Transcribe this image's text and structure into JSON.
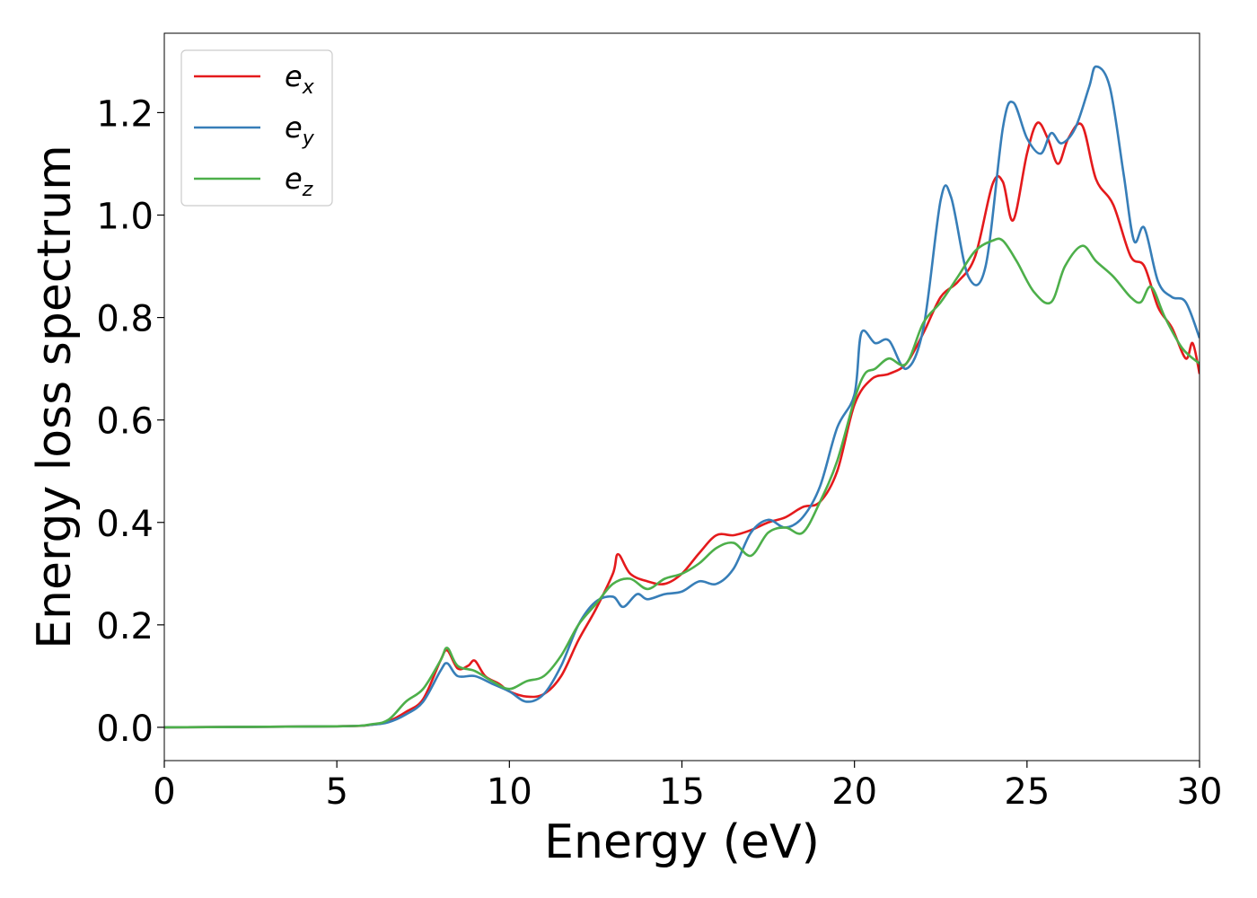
{
  "chart_data": {
    "type": "line",
    "xlabel": "Energy (eV)",
    "ylabel": "Energy loss spectrum",
    "xlim": [
      0,
      30
    ],
    "ylim": [
      -0.065,
      1.355
    ],
    "xticks": [
      0,
      5,
      10,
      15,
      20,
      25,
      30
    ],
    "xtick_labels": [
      "0",
      "5",
      "10",
      "15",
      "20",
      "25",
      "30"
    ],
    "yticks": [
      0.0,
      0.2,
      0.4,
      0.6,
      0.8,
      1.0,
      1.2
    ],
    "ytick_labels": [
      "0.0",
      "0.2",
      "0.4",
      "0.6",
      "0.8",
      "1.0",
      "1.2"
    ],
    "grid": false,
    "legend_position": "top-left",
    "series": [
      {
        "name": "e_x",
        "legend_base": "e",
        "legend_sub": "x",
        "color": "#e41a1c",
        "points": [
          [
            0,
            0.0
          ],
          [
            5,
            0.002
          ],
          [
            6,
            0.005
          ],
          [
            6.5,
            0.012
          ],
          [
            7,
            0.03
          ],
          [
            7.5,
            0.055
          ],
          [
            8,
            0.13
          ],
          [
            8.2,
            0.15
          ],
          [
            8.5,
            0.115
          ],
          [
            8.8,
            0.12
          ],
          [
            9.0,
            0.13
          ],
          [
            9.3,
            0.1
          ],
          [
            9.7,
            0.085
          ],
          [
            10,
            0.07
          ],
          [
            10.5,
            0.06
          ],
          [
            11,
            0.065
          ],
          [
            11.5,
            0.1
          ],
          [
            12,
            0.17
          ],
          [
            12.5,
            0.23
          ],
          [
            13.0,
            0.3
          ],
          [
            13.15,
            0.338
          ],
          [
            13.5,
            0.3
          ],
          [
            14,
            0.285
          ],
          [
            14.5,
            0.28
          ],
          [
            15,
            0.3
          ],
          [
            15.5,
            0.34
          ],
          [
            16,
            0.375
          ],
          [
            16.5,
            0.375
          ],
          [
            17,
            0.385
          ],
          [
            17.5,
            0.4
          ],
          [
            18,
            0.41
          ],
          [
            18.5,
            0.43
          ],
          [
            19,
            0.44
          ],
          [
            19.5,
            0.5
          ],
          [
            20,
            0.63
          ],
          [
            20.5,
            0.68
          ],
          [
            21,
            0.69
          ],
          [
            21.5,
            0.71
          ],
          [
            22,
            0.77
          ],
          [
            22.5,
            0.84
          ],
          [
            23,
            0.87
          ],
          [
            23.5,
            0.92
          ],
          [
            24,
            1.06
          ],
          [
            24.3,
            1.065
          ],
          [
            24.6,
            0.99
          ],
          [
            25,
            1.12
          ],
          [
            25.3,
            1.18
          ],
          [
            25.6,
            1.15
          ],
          [
            25.9,
            1.1
          ],
          [
            26.2,
            1.15
          ],
          [
            26.6,
            1.175
          ],
          [
            27,
            1.07
          ],
          [
            27.5,
            1.02
          ],
          [
            28,
            0.92
          ],
          [
            28.4,
            0.9
          ],
          [
            28.8,
            0.82
          ],
          [
            29.2,
            0.78
          ],
          [
            29.6,
            0.72
          ],
          [
            29.8,
            0.75
          ],
          [
            30,
            0.69
          ]
        ]
      },
      {
        "name": "e_y",
        "legend_base": "e",
        "legend_sub": "y",
        "color": "#377eb8",
        "points": [
          [
            0,
            0.0
          ],
          [
            5,
            0.002
          ],
          [
            6,
            0.005
          ],
          [
            6.5,
            0.01
          ],
          [
            7,
            0.025
          ],
          [
            7.5,
            0.05
          ],
          [
            8,
            0.11
          ],
          [
            8.2,
            0.125
          ],
          [
            8.5,
            0.1
          ],
          [
            9,
            0.1
          ],
          [
            9.5,
            0.085
          ],
          [
            10,
            0.07
          ],
          [
            10.5,
            0.05
          ],
          [
            11,
            0.065
          ],
          [
            11.5,
            0.12
          ],
          [
            12,
            0.2
          ],
          [
            12.5,
            0.245
          ],
          [
            13,
            0.255
          ],
          [
            13.3,
            0.235
          ],
          [
            13.7,
            0.26
          ],
          [
            14,
            0.25
          ],
          [
            14.5,
            0.26
          ],
          [
            15,
            0.265
          ],
          [
            15.5,
            0.285
          ],
          [
            16,
            0.28
          ],
          [
            16.5,
            0.31
          ],
          [
            17,
            0.38
          ],
          [
            17.5,
            0.405
          ],
          [
            18,
            0.39
          ],
          [
            18.5,
            0.41
          ],
          [
            19,
            0.47
          ],
          [
            19.5,
            0.585
          ],
          [
            20,
            0.65
          ],
          [
            20.2,
            0.77
          ],
          [
            20.6,
            0.75
          ],
          [
            21,
            0.755
          ],
          [
            21.5,
            0.7
          ],
          [
            22,
            0.78
          ],
          [
            22.5,
            1.03
          ],
          [
            22.8,
            1.035
          ],
          [
            23.3,
            0.88
          ],
          [
            23.8,
            0.9
          ],
          [
            24.3,
            1.17
          ],
          [
            24.6,
            1.22
          ],
          [
            25,
            1.15
          ],
          [
            25.4,
            1.12
          ],
          [
            25.7,
            1.16
          ],
          [
            26,
            1.14
          ],
          [
            26.4,
            1.17
          ],
          [
            26.8,
            1.25
          ],
          [
            27,
            1.29
          ],
          [
            27.4,
            1.25
          ],
          [
            27.8,
            1.08
          ],
          [
            28.1,
            0.95
          ],
          [
            28.4,
            0.975
          ],
          [
            28.8,
            0.87
          ],
          [
            29.2,
            0.84
          ],
          [
            29.6,
            0.83
          ],
          [
            30,
            0.76
          ]
        ]
      },
      {
        "name": "e_z",
        "legend_base": "e",
        "legend_sub": "z",
        "color": "#4daf4a",
        "points": [
          [
            0,
            0.0
          ],
          [
            5,
            0.002
          ],
          [
            6,
            0.006
          ],
          [
            6.5,
            0.015
          ],
          [
            7,
            0.05
          ],
          [
            7.5,
            0.075
          ],
          [
            8,
            0.13
          ],
          [
            8.2,
            0.155
          ],
          [
            8.5,
            0.12
          ],
          [
            9,
            0.11
          ],
          [
            9.5,
            0.09
          ],
          [
            10,
            0.075
          ],
          [
            10.5,
            0.09
          ],
          [
            11,
            0.1
          ],
          [
            11.5,
            0.14
          ],
          [
            12,
            0.2
          ],
          [
            12.5,
            0.24
          ],
          [
            13,
            0.28
          ],
          [
            13.5,
            0.29
          ],
          [
            14,
            0.27
          ],
          [
            14.5,
            0.29
          ],
          [
            15,
            0.3
          ],
          [
            15.5,
            0.32
          ],
          [
            16,
            0.35
          ],
          [
            16.5,
            0.36
          ],
          [
            17,
            0.335
          ],
          [
            17.5,
            0.38
          ],
          [
            18,
            0.39
          ],
          [
            18.5,
            0.38
          ],
          [
            19,
            0.44
          ],
          [
            19.5,
            0.52
          ],
          [
            20,
            0.64
          ],
          [
            20.3,
            0.69
          ],
          [
            20.6,
            0.7
          ],
          [
            21,
            0.72
          ],
          [
            21.5,
            0.71
          ],
          [
            22,
            0.79
          ],
          [
            22.5,
            0.83
          ],
          [
            23,
            0.88
          ],
          [
            23.5,
            0.93
          ],
          [
            24,
            0.95
          ],
          [
            24.3,
            0.95
          ],
          [
            24.7,
            0.91
          ],
          [
            25.2,
            0.85
          ],
          [
            25.7,
            0.83
          ],
          [
            26.1,
            0.9
          ],
          [
            26.6,
            0.94
          ],
          [
            27,
            0.91
          ],
          [
            27.5,
            0.88
          ],
          [
            28,
            0.84
          ],
          [
            28.3,
            0.83
          ],
          [
            28.6,
            0.86
          ],
          [
            29,
            0.8
          ],
          [
            29.5,
            0.74
          ],
          [
            30,
            0.71
          ]
        ]
      }
    ]
  }
}
